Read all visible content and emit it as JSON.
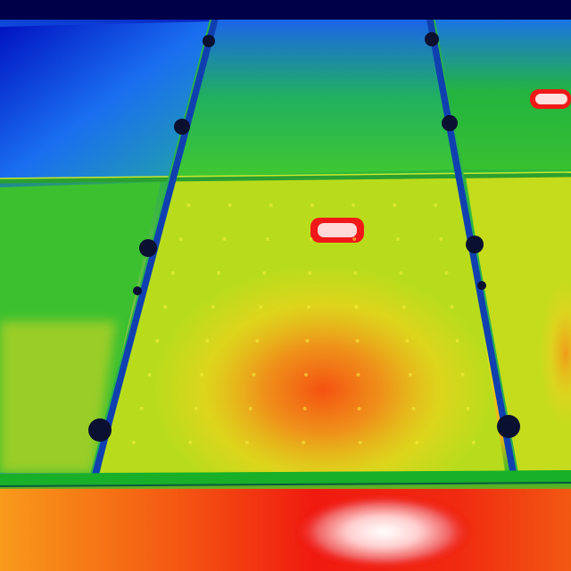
{
  "image": {
    "subject": "thermal-image-solar-panels",
    "palette": {
      "cold": "#0000a0",
      "cool": "#1a7af0",
      "mild": "#2cc02a",
      "warm": "#f0ee20",
      "hot": "#f26a10",
      "very_hot": "#f01010",
      "hotspot": "#ffe0e0",
      "frame": "#0a2a5a",
      "bolt": "#0a1030"
    },
    "hotspots": [
      {
        "name": "hotspot-top-right",
        "level": "very-hot"
      },
      {
        "name": "hotspot-center",
        "level": "very-hot"
      },
      {
        "name": "hotspot-bottom",
        "level": "very-hot"
      }
    ]
  }
}
